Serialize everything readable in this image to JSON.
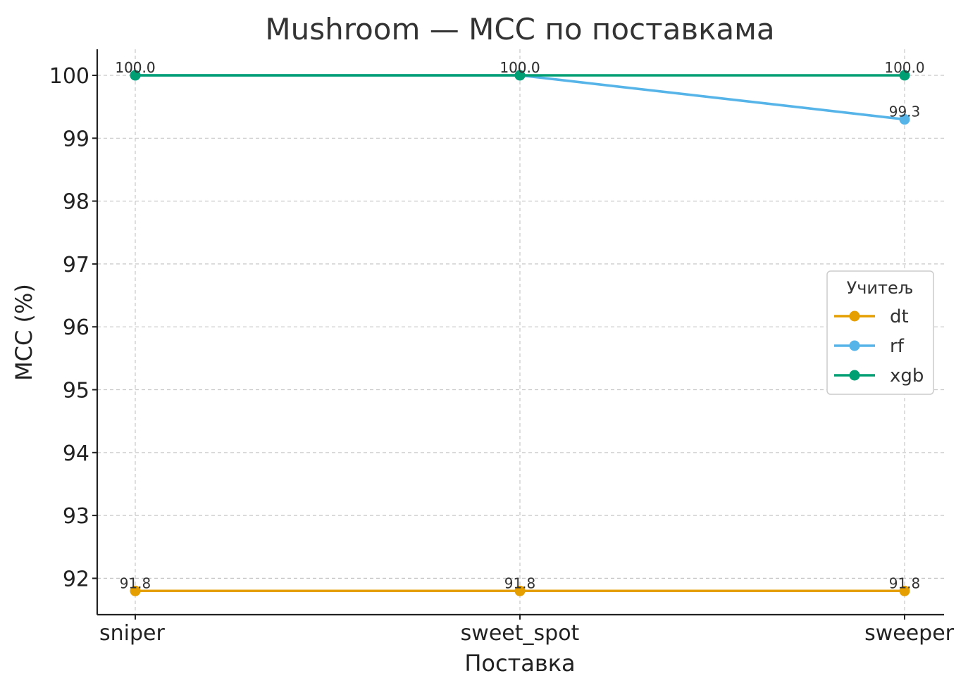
{
  "chart_data": {
    "type": "line",
    "title": "Mushroom — MCC по поставкама",
    "xlabel": "Поставка",
    "ylabel": "MCC (%)",
    "categories": [
      "sniper",
      "sweet_spot",
      "sweeper"
    ],
    "ylim": [
      91.4,
      100.4
    ],
    "yticks": [
      92,
      93,
      94,
      95,
      96,
      97,
      98,
      99,
      100
    ],
    "grid": true,
    "legend": {
      "title": "Учитељ",
      "placement": "center-right"
    },
    "series": [
      {
        "name": "dt",
        "color": "#E69F00",
        "values": [
          91.8,
          91.8,
          91.8
        ],
        "labels": [
          "91.8",
          "91.8",
          "91.8"
        ]
      },
      {
        "name": "rf",
        "color": "#56B4E9",
        "values": [
          100.0,
          100.0,
          99.3
        ],
        "labels": [
          "100.0",
          "100.0",
          "99.3"
        ]
      },
      {
        "name": "xgb",
        "color": "#009E73",
        "values": [
          100.0,
          100.0,
          100.0
        ],
        "labels": [
          "100.0",
          "100.0",
          "100.0"
        ]
      }
    ]
  }
}
